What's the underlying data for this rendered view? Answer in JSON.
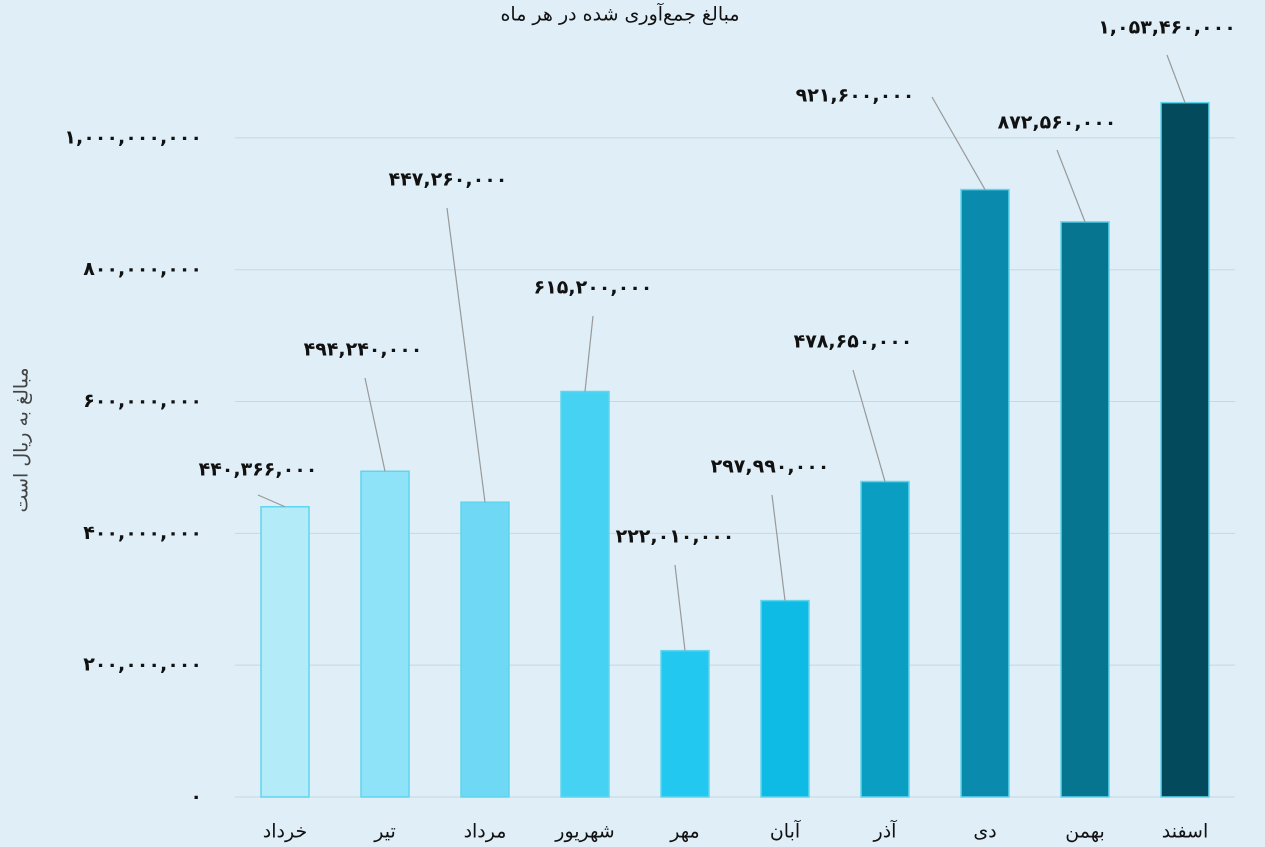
{
  "chart_data": {
    "type": "bar",
    "title": "مبالغ جمع‌آوری شده در هر ماه",
    "y_axis_label": "مبالغ به ریال است",
    "categories": [
      "خرداد",
      "تیر",
      "مرداد",
      "شهریور",
      "مهر",
      "آبان",
      "آذر",
      "دی",
      "بهمن",
      "اسفند"
    ],
    "values": [
      440366000,
      494240000,
      447260000,
      615200000,
      222010000,
      297990000,
      478650000,
      921600000,
      872560000,
      1053460000
    ],
    "value_labels": [
      "۴۴۰,۳۶۶,۰۰۰",
      "۴۹۴,۲۴۰,۰۰۰",
      "۴۴۷,۲۶۰,۰۰۰",
      "۶۱۵,۲۰۰,۰۰۰",
      "۲۲۲,۰۱۰,۰۰۰",
      "۲۹۷,۹۹۰,۰۰۰",
      "۴۷۸,۶۵۰,۰۰۰",
      "۹۲۱,۶۰۰,۰۰۰",
      "۸۷۲,۵۶۰,۰۰۰",
      "۱,۰۵۳,۴۶۰,۰۰۰"
    ],
    "colors": [
      "#b3ebf8",
      "#8ee3f8",
      "#6fd9f5",
      "#46d2f2",
      "#22c8f0",
      "#0dbbe4",
      "#0a9fc2",
      "#0a8aac",
      "#067590",
      "#034a5c"
    ],
    "ylim": [
      0,
      1100000000
    ],
    "yticks": [
      {
        "value": 0,
        "label": "۰"
      },
      {
        "value": 200000000,
        "label": "۲۰۰,۰۰۰,۰۰۰"
      },
      {
        "value": 400000000,
        "label": "۴۰۰,۰۰۰,۰۰۰"
      },
      {
        "value": 600000000,
        "label": "۶۰۰,۰۰۰,۰۰۰"
      },
      {
        "value": 800000000,
        "label": "۸۰۰,۰۰۰,۰۰۰"
      },
      {
        "value": 1000000000,
        "label": "۱,۰۰۰,۰۰۰,۰۰۰"
      }
    ],
    "grid": true
  }
}
